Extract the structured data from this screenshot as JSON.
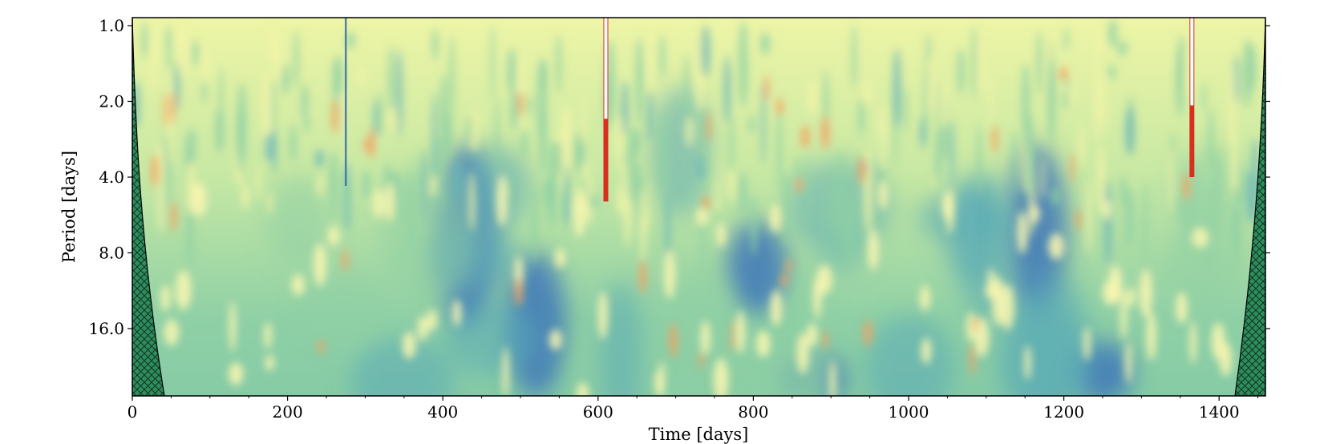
{
  "chart_data": {
    "type": "heatmap",
    "title": "",
    "xlabel": "Time [days]",
    "ylabel": "Period [days]",
    "xlim": [
      0,
      1470
    ],
    "ylim_period_log2": [
      1.0,
      32.0
    ],
    "x_ticks": [
      0,
      200,
      400,
      600,
      800,
      1000,
      1200,
      1400
    ],
    "x_tick_labels": [
      "0",
      "200",
      "400",
      "600",
      "800",
      "1000",
      "1200",
      "1400"
    ],
    "y_ticks": [
      1.0,
      2.0,
      4.0,
      8.0,
      16.0
    ],
    "y_tick_labels": [
      "1.0",
      "2.0",
      "4.0",
      "8.0",
      "16.0"
    ],
    "y_scale": "log2, inverted (short periods at top)",
    "colormap": "spectral (red = high power, yellow/green = medium, blue = low)",
    "colors": {
      "high": "#d7301f",
      "mid_high": "#f4a261",
      "mid": "#f5f5a8",
      "mid_low": "#8fd0a4",
      "low": "#3e78b8",
      "hatch_fill": "#2a8a5c",
      "hatch_line": "#1b3d2c"
    },
    "cone_of_influence": "hatched regions at both time edges, widening toward long periods",
    "notable_features": [
      {
        "x": 610,
        "period_range": [
          1.0,
          5.0
        ],
        "description": "high-power spike (red/white)"
      },
      {
        "x": 1365,
        "period_range": [
          1.0,
          4.0
        ],
        "description": "high-power spike (red/white)"
      },
      {
        "x": 430,
        "period_range": [
          3.0,
          16.0
        ],
        "description": "low-power region"
      },
      {
        "x": 520,
        "period_range": [
          8.0,
          30.0
        ],
        "description": "low-power region"
      },
      {
        "x": 805,
        "period_range": [
          6.0,
          14.0
        ],
        "description": "low-power region"
      },
      {
        "x": 880,
        "period_range": [
          20.0,
          32.0
        ],
        "description": "low-power region"
      },
      {
        "x": 1165,
        "period_range": [
          3.0,
          14.0
        ],
        "description": "low-power region"
      },
      {
        "x": 1250,
        "period_range": [
          18.0,
          32.0
        ],
        "description": "low-power region"
      }
    ]
  }
}
